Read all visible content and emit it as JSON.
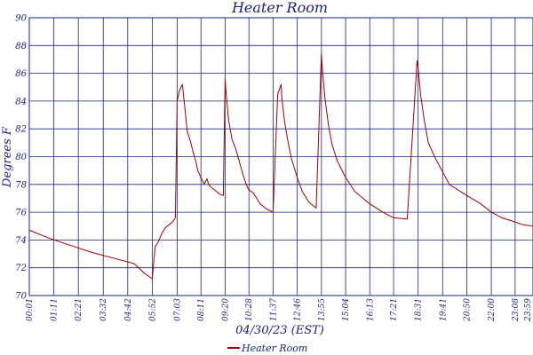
{
  "chart_data": {
    "type": "line",
    "title": "Heater Room",
    "xlabel": "04/30/23 (EST)",
    "ylabel": "Degrees F",
    "ylim": [
      70,
      90
    ],
    "yticks": [
      70,
      72,
      74,
      76,
      78,
      80,
      82,
      84,
      86,
      88,
      90
    ],
    "x_tick_labels": [
      "00:01",
      "01:11",
      "02:21",
      "03:32",
      "04:42",
      "05:52",
      "07:03",
      "08:11",
      "09:20",
      "10:28",
      "11:37",
      "12:46",
      "13:55",
      "15:04",
      "16:13",
      "17:21",
      "18:31",
      "19:41",
      "20:50",
      "22:00",
      "23:08",
      "23:59"
    ],
    "grid": true,
    "legend_position": "bottom-center",
    "colors": {
      "series": "#a00000",
      "grid": "#1a237e",
      "axis": "#1a237e"
    },
    "series": [
      {
        "name": "Heater Room",
        "x": [
          "00:01",
          "01:00",
          "02:00",
          "03:00",
          "04:00",
          "05:00",
          "05:30",
          "05:52",
          "06:00",
          "06:10",
          "06:20",
          "06:30",
          "06:40",
          "06:50",
          "06:58",
          "07:03",
          "07:10",
          "07:18",
          "07:25",
          "07:32",
          "07:40",
          "07:48",
          "07:55",
          "08:02",
          "08:11",
          "08:20",
          "08:28",
          "08:35",
          "08:45",
          "08:55",
          "09:05",
          "09:15",
          "09:20",
          "09:22",
          "09:30",
          "09:40",
          "09:50",
          "10:00",
          "10:10",
          "10:20",
          "10:28",
          "10:40",
          "10:50",
          "11:00",
          "11:10",
          "11:20",
          "11:37",
          "11:50",
          "12:00",
          "12:02",
          "12:10",
          "12:20",
          "12:30",
          "12:46",
          "13:00",
          "13:20",
          "13:40",
          "13:55",
          "13:57",
          "14:05",
          "14:15",
          "14:25",
          "14:40",
          "15:04",
          "15:30",
          "16:13",
          "16:50",
          "17:21",
          "18:00",
          "18:28",
          "18:31",
          "18:38",
          "18:48",
          "19:00",
          "19:20",
          "19:41",
          "20:00",
          "20:50",
          "21:30",
          "22:00",
          "22:30",
          "23:08",
          "23:30",
          "23:59"
        ],
        "values": [
          74.7,
          74.1,
          73.6,
          73.1,
          72.7,
          72.3,
          71.6,
          71.2,
          73.5,
          73.9,
          74.5,
          74.9,
          75.1,
          75.3,
          75.6,
          84.0,
          84.8,
          85.2,
          83.5,
          81.8,
          81.2,
          80.4,
          79.8,
          79.0,
          78.5,
          78.0,
          78.4,
          77.9,
          77.7,
          77.5,
          77.3,
          77.2,
          85.6,
          84.8,
          82.6,
          81.2,
          80.6,
          79.7,
          78.8,
          78.0,
          77.6,
          77.4,
          77.0,
          76.6,
          76.4,
          76.2,
          76.0,
          84.5,
          85.2,
          84.2,
          82.5,
          81.0,
          79.8,
          78.5,
          77.5,
          76.7,
          76.3,
          87.4,
          86.5,
          84.2,
          82.3,
          80.9,
          79.7,
          78.5,
          77.5,
          76.6,
          76.0,
          75.6,
          75.5,
          86.9,
          86.4,
          84.5,
          82.7,
          81.0,
          79.9,
          78.9,
          78.0,
          77.2,
          76.6,
          76.0,
          75.6,
          75.3,
          75.1,
          75.0
        ]
      }
    ]
  }
}
